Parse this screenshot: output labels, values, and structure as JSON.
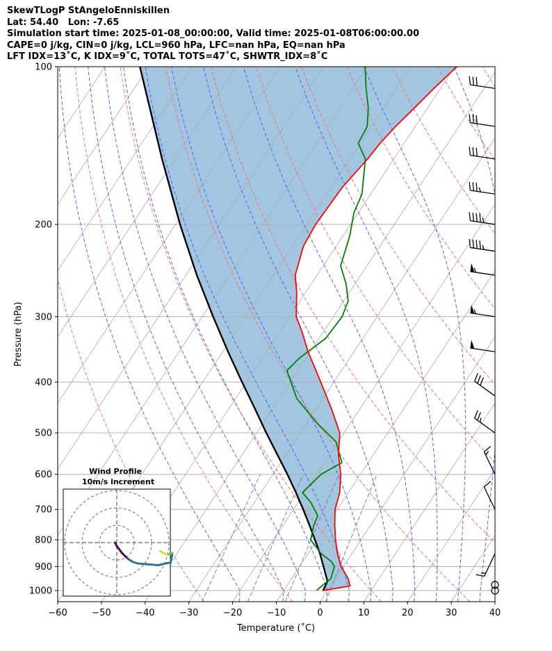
{
  "header": {
    "line1": "SkewTLogP StAngeloEnniskillen",
    "line2": "Lat: 54.40   Lon: -7.65",
    "line3": "Simulation start time: 2025-01-08_00:00:00, Valid time: 2025-01-08T06:00:00.00",
    "line4": "CAPE=0 j/kg, CIN=0 j/kg, LCL=960 hPa, LFC=nan hPa, EQ=nan hPa",
    "line5": "LFT IDX=13˚C, K IDX=9˚C, TOTAL TOTS=47˚C, SHWTR_IDX=8˚C"
  },
  "chart_data": {
    "type": "skewt",
    "xlabel": "Temperature (˚C)",
    "ylabel": "Pressure (hPa)",
    "xlim": [
      -60,
      40
    ],
    "ylim": [
      1050,
      100
    ],
    "x_ticks": [
      "−60",
      "−50",
      "−40",
      "−30",
      "−20",
      "−10",
      "0",
      "10",
      "20",
      "30",
      "40"
    ],
    "y_ticks": [
      "100",
      "200",
      "300",
      "400",
      "500",
      "600",
      "700",
      "800",
      "900",
      "1000"
    ],
    "temperature": [
      [
        1000,
        -1.0
      ],
      [
        980,
        4.5
      ],
      [
        950,
        3.0
      ],
      [
        900,
        -0.5
      ],
      [
        850,
        -3.3
      ],
      [
        800,
        -5.8
      ],
      [
        750,
        -8.2
      ],
      [
        700,
        -10.5
      ],
      [
        650,
        -12.0
      ],
      [
        600,
        -14.5
      ],
      [
        550,
        -18.0
      ],
      [
        500,
        -21.0
      ],
      [
        450,
        -26.5
      ],
      [
        400,
        -33.0
      ],
      [
        350,
        -40.5
      ],
      [
        320,
        -45.0
      ],
      [
        300,
        -48.5
      ],
      [
        270,
        -52.0
      ],
      [
        250,
        -55.0
      ],
      [
        220,
        -57.5
      ],
      [
        200,
        -58.0
      ],
      [
        170,
        -57.5
      ],
      [
        150,
        -56.0
      ],
      [
        140,
        -55.5
      ],
      [
        130,
        -54.5
      ],
      [
        120,
        -53.0
      ],
      [
        110,
        -51.5
      ],
      [
        100,
        -49.5
      ]
    ],
    "dewpoint": [
      [
        1000,
        -2.5
      ],
      [
        980,
        -2.0
      ],
      [
        950,
        -1.0
      ],
      [
        900,
        -2.0
      ],
      [
        880,
        -3.5
      ],
      [
        850,
        -7.0
      ],
      [
        800,
        -11.5
      ],
      [
        750,
        -13.0
      ],
      [
        720,
        -13.5
      ],
      [
        680,
        -17.0
      ],
      [
        650,
        -20.5
      ],
      [
        600,
        -19.0
      ],
      [
        570,
        -16.0
      ],
      [
        520,
        -20.5
      ],
      [
        480,
        -27.5
      ],
      [
        430,
        -36.0
      ],
      [
        380,
        -42.5
      ],
      [
        360,
        -41.5
      ],
      [
        330,
        -38.5
      ],
      [
        300,
        -38.0
      ],
      [
        280,
        -39.0
      ],
      [
        260,
        -42.0
      ],
      [
        240,
        -46.0
      ],
      [
        210,
        -48.5
      ],
      [
        190,
        -51.0
      ],
      [
        175,
        -52.0
      ],
      [
        150,
        -56.5
      ],
      [
        140,
        -60.5
      ],
      [
        130,
        -61.0
      ],
      [
        120,
        -63.5
      ],
      [
        110,
        -67.0
      ],
      [
        100,
        -70.5
      ]
    ],
    "parcel": [
      [
        1000,
        -1.0
      ],
      [
        960,
        -1.4
      ],
      [
        900,
        -4.5
      ],
      [
        850,
        -7.3
      ],
      [
        800,
        -10.5
      ],
      [
        750,
        -14.0
      ],
      [
        700,
        -17.8
      ],
      [
        650,
        -22.0
      ],
      [
        600,
        -26.7
      ],
      [
        550,
        -32.0
      ],
      [
        500,
        -37.8
      ],
      [
        450,
        -44.0
      ],
      [
        400,
        -51.0
      ],
      [
        350,
        -58.8
      ],
      [
        300,
        -67.5
      ],
      [
        250,
        -77.5
      ],
      [
        200,
        -89.0
      ],
      [
        150,
        -103.0
      ],
      [
        100,
        -122.0
      ]
    ],
    "wind_barbs_pressure_hpa": [
      1000,
      975,
      850,
      700,
      600,
      500,
      425,
      350,
      300,
      250,
      225,
      200,
      175,
      150,
      130,
      110
    ],
    "wind_barbs_knots": [
      0,
      0,
      15,
      10,
      15,
      25,
      30,
      50,
      55,
      55,
      45,
      45,
      35,
      30,
      30,
      30
    ],
    "hodograph": {
      "title_line1": "Wind Profile",
      "title_line2": "10m/s increment",
      "rings_mps": [
        10,
        20,
        30
      ],
      "colors": {
        "low": "#440154",
        "mid": "#2a788e",
        "high": "#dde318"
      }
    },
    "colors": {
      "temperature": "#ff0000",
      "dewpoint": "#008000",
      "parcel": "#000000",
      "cape_fill": "#a3c6e0",
      "dry_adiabat": "#ff6b6b",
      "moist_adiabat": "#4f5fff",
      "mixing_ratio": "#9966cc",
      "isotherm": "#aaaaaa"
    }
  }
}
